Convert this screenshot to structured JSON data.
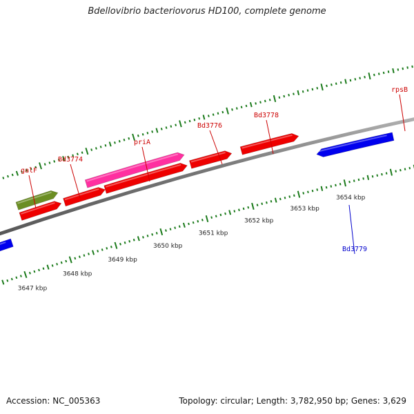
{
  "title": "Bdellovibrio bacteriovorus HD100, complete genome",
  "footer": {
    "accession": "Accession: NC_005363",
    "stats": "Topology: circular; Length: 3,782,950 bp; Genes: 3,629"
  },
  "backbone_color": "#888888",
  "tick_color": "#1a7a1a",
  "tick_labels": [
    "3647 kbp",
    "3648 kbp",
    "3649 kbp",
    "3650 kbp",
    "3651 kbp",
    "3652 kbp",
    "3653 kbp",
    "3654 kbp"
  ],
  "genes": [
    {
      "name": "galF",
      "label_color": "#cc0000",
      "fill": "#6b8e23",
      "strand": "forward"
    },
    {
      "name": "Bd3774",
      "label_color": "#cc0000",
      "fill": "#ee0000",
      "strand": "forward"
    },
    {
      "name": "priA",
      "label_color": "#cc0000",
      "fill": "#ff2fa0",
      "strand": "forward"
    },
    {
      "name": "Bd3776",
      "label_color": "#cc0000",
      "fill": "#ee0000",
      "strand": "forward"
    },
    {
      "name": "Bd3778",
      "label_color": "#cc0000",
      "fill": "#ee0000",
      "strand": "forward"
    },
    {
      "name": "rpsB",
      "label_color": "#cc0000",
      "fill": "#f08080",
      "strand": "forward"
    },
    {
      "name": "Bd3779",
      "label_color": "#0000cc",
      "fill": "#0000ee",
      "strand": "reverse"
    }
  ]
}
